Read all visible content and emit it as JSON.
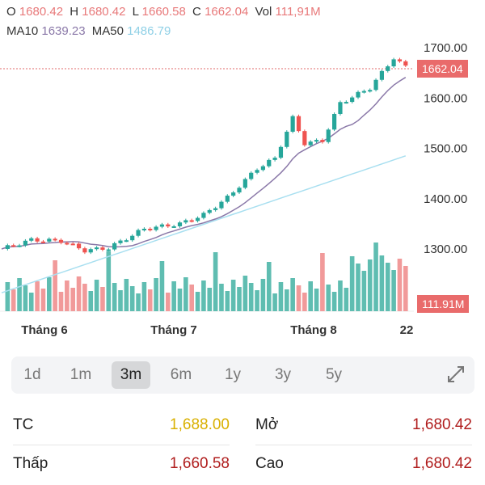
{
  "header": {
    "o_label": "O",
    "o_value": "1680.42",
    "h_label": "H",
    "h_value": "1680.42",
    "l_label": "L",
    "l_value": "1660.58",
    "c_label": "C",
    "c_value": "1662.04",
    "vol_label": "Vol",
    "vol_value": "111,91M",
    "ma10_label": "MA10",
    "ma10_value": "1639.23",
    "ma50_label": "MA50",
    "ma50_value": "1486.79"
  },
  "chart_data": {
    "type": "candlestick",
    "price_ticks": [
      "1700.00",
      "1600.00",
      "1500.00",
      "1400.00",
      "1300.00"
    ],
    "x_labels": [
      "Tháng 6",
      "Tháng 7",
      "Tháng 8",
      "22"
    ],
    "current_price_label": "1662.04",
    "volume_label": "111.91M",
    "ylim": [
      1270,
      1720
    ],
    "colors": {
      "up": "#26a69a",
      "down": "#ef5350",
      "ma10": "#8a78a8",
      "ma50": "#a8dff0",
      "vol_up": "#5fbdb1",
      "vol_down": "#f19a9a"
    }
  },
  "periods": {
    "items": [
      "1d",
      "1m",
      "3m",
      "6m",
      "1y",
      "3y",
      "5y"
    ],
    "active": "3m",
    "expand_icon": "expand-arrows-icon"
  },
  "stats": {
    "tc_label": "TC",
    "tc_value": "1,688.00",
    "open_label": "Mở",
    "open_value": "1,680.42",
    "low_label": "Thấp",
    "low_value": "1,660.58",
    "high_label": "Cao",
    "high_value": "1,680.42"
  }
}
